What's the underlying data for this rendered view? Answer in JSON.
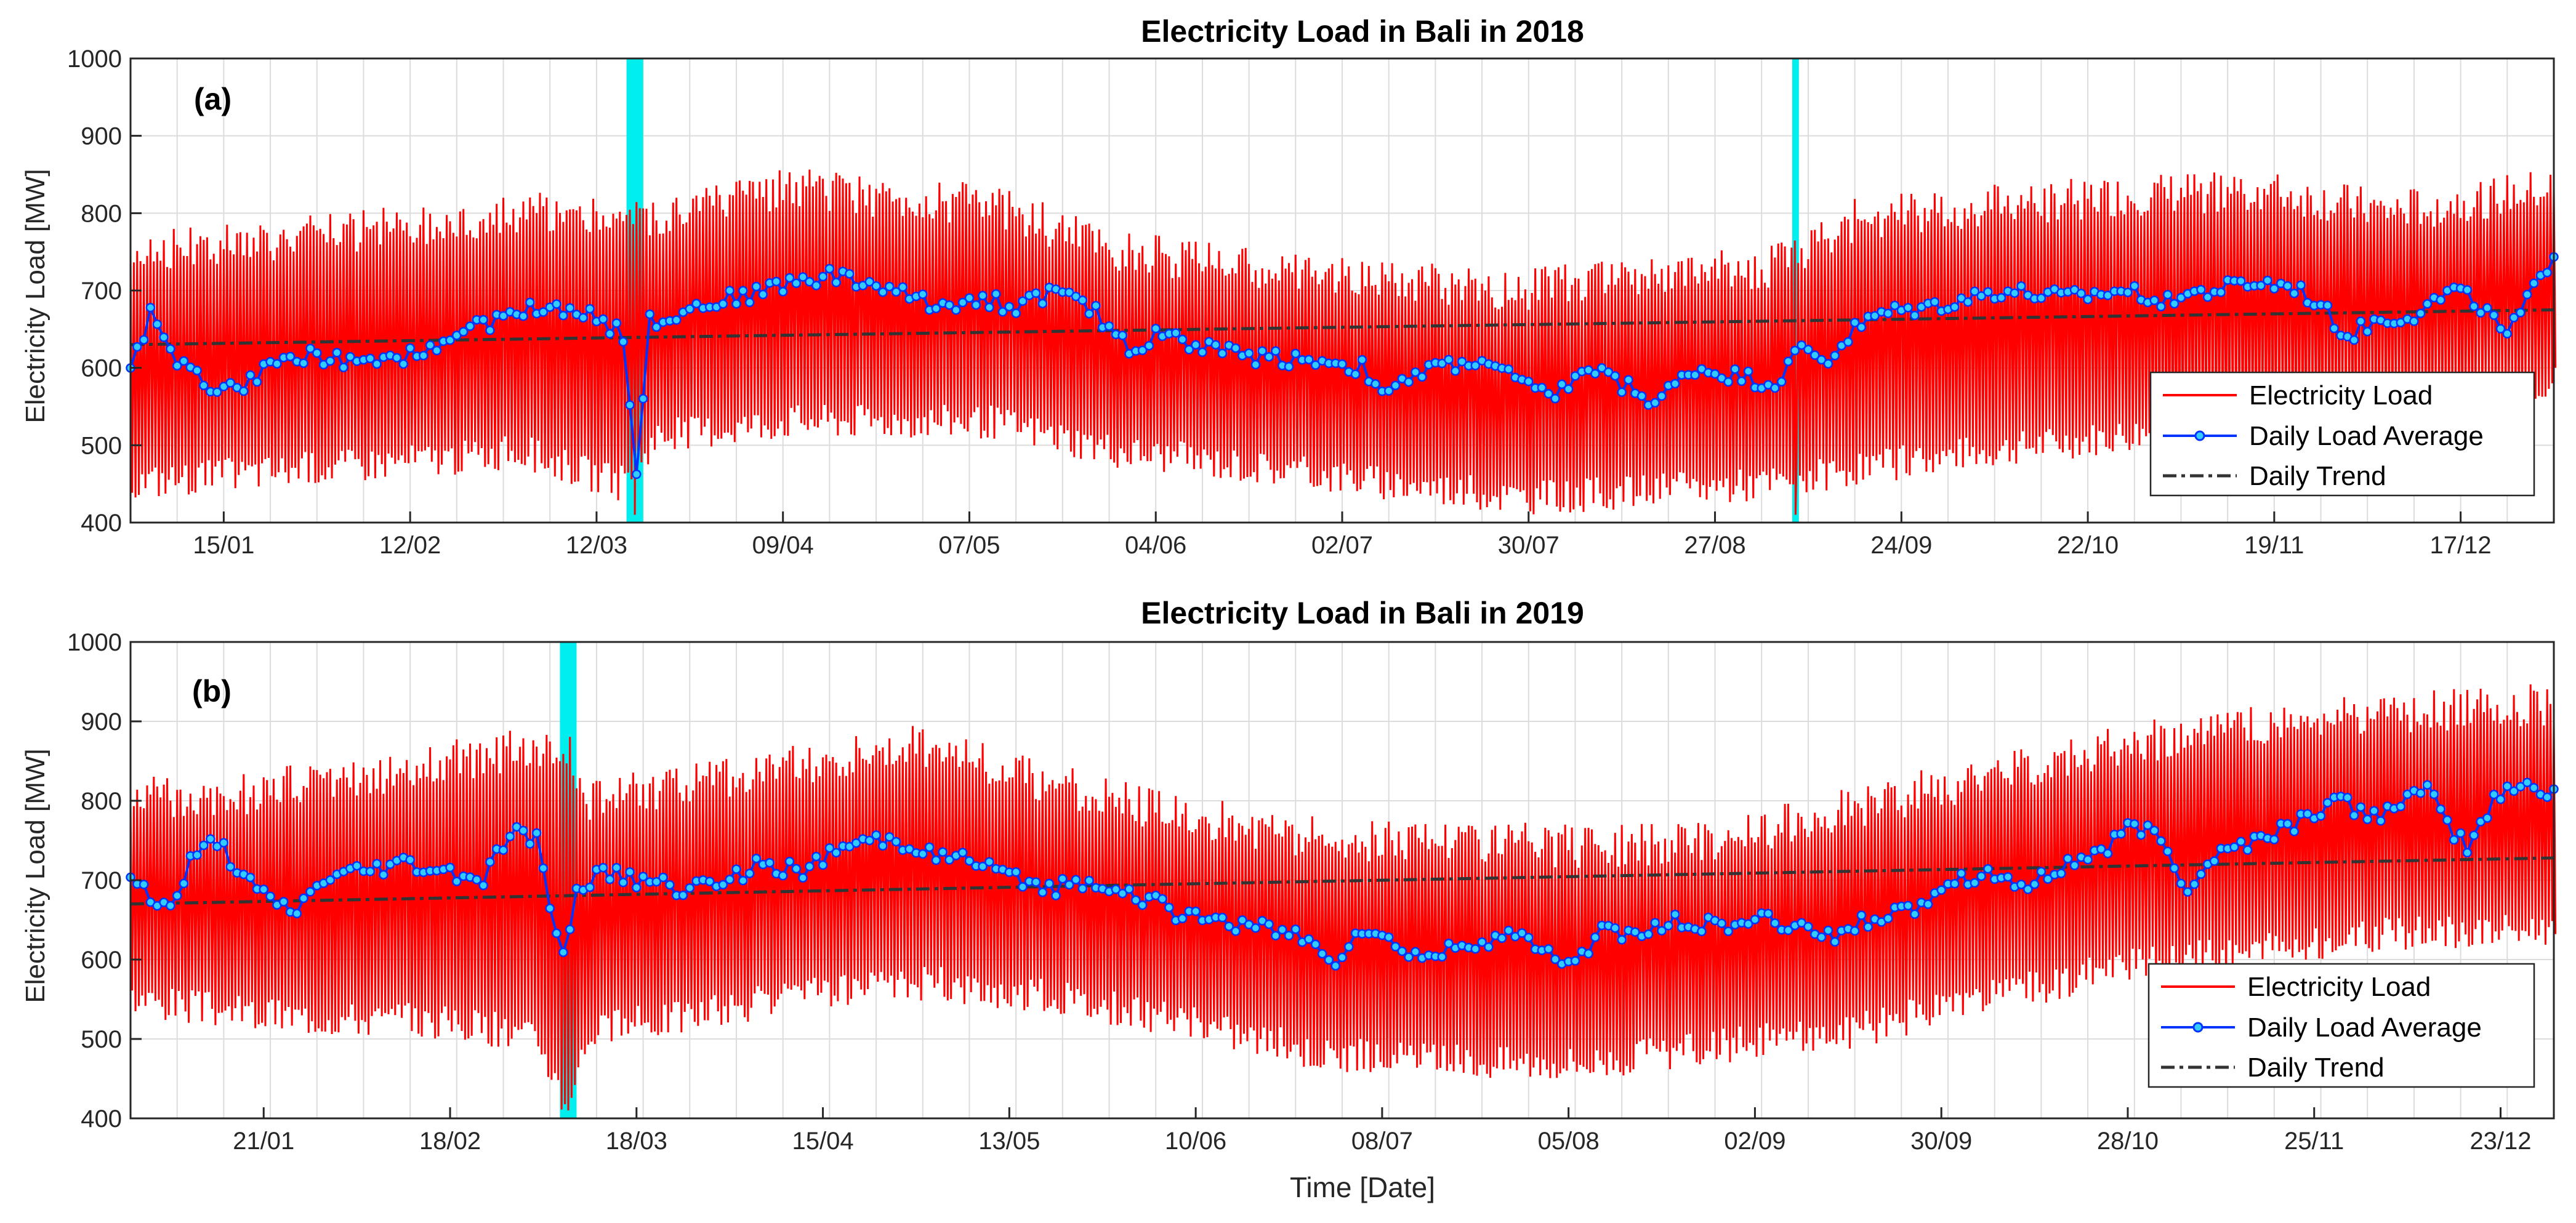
{
  "figure": {
    "xlabel": "Time [Date]",
    "ylabel": "Electricity Load [MW]"
  },
  "legend": {
    "position": "bottom-right",
    "entries": [
      "Electricity Load",
      "Daily Load Average",
      "Daily Trend"
    ]
  },
  "colors": {
    "load": "#ff0000",
    "average": "#0033ff",
    "marker_fill": "#33ccff",
    "trend": "#333333",
    "anomaly": "#00eeee",
    "grid": "#dcdcdc"
  },
  "chart_data": [
    {
      "type": "line",
      "panel": "(a)",
      "title": "Electricity Load in Bali in 2018",
      "ylabel": "Electricity Load [MW]",
      "ylim": [
        400,
        1000
      ],
      "yticks": [
        400,
        500,
        600,
        700,
        800,
        900,
        1000
      ],
      "xlim_days": [
        1,
        365
      ],
      "xticks": [
        {
          "day": 15,
          "label": "15/01"
        },
        {
          "day": 43,
          "label": "12/02"
        },
        {
          "day": 71,
          "label": "12/03"
        },
        {
          "day": 99,
          "label": "09/04"
        },
        {
          "day": 127,
          "label": "07/05"
        },
        {
          "day": 155,
          "label": "04/06"
        },
        {
          "day": 183,
          "label": "02/07"
        },
        {
          "day": 211,
          "label": "30/07"
        },
        {
          "day": 239,
          "label": "27/08"
        },
        {
          "day": 267,
          "label": "24/09"
        },
        {
          "day": 295,
          "label": "22/10"
        },
        {
          "day": 323,
          "label": "19/11"
        },
        {
          "day": 351,
          "label": "17/12"
        }
      ],
      "anomaly_days": [
        {
          "start": 75.5,
          "end": 78
        },
        {
          "start": 250.6,
          "end": 251.6
        }
      ],
      "trend": {
        "start": 630,
        "end": 675
      },
      "daily_average_anchors": [
        [
          1,
          600
        ],
        [
          4,
          670
        ],
        [
          8,
          610
        ],
        [
          12,
          580
        ],
        [
          16,
          570
        ],
        [
          22,
          600
        ],
        [
          28,
          620
        ],
        [
          36,
          600
        ],
        [
          44,
          620
        ],
        [
          50,
          640
        ],
        [
          58,
          670
        ],
        [
          64,
          680
        ],
        [
          70,
          675
        ],
        [
          75,
          640
        ],
        [
          77,
          470
        ],
        [
          79,
          660
        ],
        [
          86,
          680
        ],
        [
          94,
          695
        ],
        [
          100,
          710
        ],
        [
          106,
          720
        ],
        [
          114,
          705
        ],
        [
          122,
          680
        ],
        [
          128,
          690
        ],
        [
          134,
          680
        ],
        [
          140,
          700
        ],
        [
          146,
          670
        ],
        [
          152,
          620
        ],
        [
          156,
          650
        ],
        [
          160,
          630
        ],
        [
          170,
          615
        ],
        [
          180,
          610
        ],
        [
          186,
          600
        ],
        [
          190,
          565
        ],
        [
          196,
          600
        ],
        [
          204,
          610
        ],
        [
          210,
          580
        ],
        [
          214,
          560
        ],
        [
          220,
          600
        ],
        [
          226,
          575
        ],
        [
          230,
          555
        ],
        [
          236,
          600
        ],
        [
          242,
          590
        ],
        [
          248,
          580
        ],
        [
          252,
          625
        ],
        [
          256,
          610
        ],
        [
          260,
          650
        ],
        [
          264,
          670
        ],
        [
          272,
          680
        ],
        [
          282,
          700
        ],
        [
          292,
          690
        ],
        [
          300,
          700
        ],
        [
          306,
          690
        ],
        [
          314,
          700
        ],
        [
          320,
          710
        ],
        [
          326,
          705
        ],
        [
          330,
          680
        ],
        [
          334,
          640
        ],
        [
          338,
          660
        ],
        [
          344,
          670
        ],
        [
          350,
          700
        ],
        [
          354,
          680
        ],
        [
          358,
          640
        ],
        [
          362,
          700
        ],
        [
          365,
          750
        ]
      ],
      "load_envelope": {
        "upper_anchors": [
          [
            1,
            740
          ],
          [
            30,
            760
          ],
          [
            60,
            790
          ],
          [
            74,
            780
          ],
          [
            80,
            780
          ],
          [
            100,
            820
          ],
          [
            130,
            800
          ],
          [
            150,
            740
          ],
          [
            170,
            720
          ],
          [
            190,
            700
          ],
          [
            210,
            690
          ],
          [
            230,
            710
          ],
          [
            248,
            720
          ],
          [
            260,
            780
          ],
          [
            280,
            800
          ],
          [
            300,
            810
          ],
          [
            320,
            820
          ],
          [
            340,
            790
          ],
          [
            365,
            820
          ]
        ],
        "lower_anchors": [
          [
            1,
            460
          ],
          [
            30,
            480
          ],
          [
            60,
            500
          ],
          [
            74,
            460
          ],
          [
            80,
            520
          ],
          [
            100,
            540
          ],
          [
            130,
            540
          ],
          [
            150,
            500
          ],
          [
            170,
            480
          ],
          [
            190,
            460
          ],
          [
            210,
            440
          ],
          [
            230,
            450
          ],
          [
            248,
            460
          ],
          [
            260,
            480
          ],
          [
            280,
            500
          ],
          [
            300,
            520
          ],
          [
            320,
            540
          ],
          [
            340,
            560
          ],
          [
            365,
            590
          ]
        ]
      }
    },
    {
      "type": "line",
      "panel": "(b)",
      "title": "Electricity Load in Bali in 2019",
      "ylabel": "Electricity Load [MW]",
      "ylim": [
        400,
        1000
      ],
      "yticks": [
        400,
        500,
        600,
        700,
        800,
        900,
        1000
      ],
      "xlim_days": [
        1,
        365
      ],
      "xticks": [
        {
          "day": 21,
          "label": "21/01"
        },
        {
          "day": 49,
          "label": "18/02"
        },
        {
          "day": 77,
          "label": "18/03"
        },
        {
          "day": 105,
          "label": "15/04"
        },
        {
          "day": 133,
          "label": "13/05"
        },
        {
          "day": 161,
          "label": "10/06"
        },
        {
          "day": 189,
          "label": "08/07"
        },
        {
          "day": 217,
          "label": "05/08"
        },
        {
          "day": 245,
          "label": "02/09"
        },
        {
          "day": 273,
          "label": "30/09"
        },
        {
          "day": 301,
          "label": "28/10"
        },
        {
          "day": 329,
          "label": "25/11"
        },
        {
          "day": 357,
          "label": "23/12"
        }
      ],
      "anomaly_days": [
        {
          "start": 65.5,
          "end": 68
        }
      ],
      "trend": {
        "start": 670,
        "end": 728
      },
      "daily_average_anchors": [
        [
          1,
          705
        ],
        [
          4,
          680
        ],
        [
          7,
          660
        ],
        [
          10,
          720
        ],
        [
          14,
          750
        ],
        [
          18,
          700
        ],
        [
          22,
          670
        ],
        [
          26,
          660
        ],
        [
          30,
          700
        ],
        [
          36,
          710
        ],
        [
          42,
          720
        ],
        [
          48,
          710
        ],
        [
          54,
          700
        ],
        [
          58,
          760
        ],
        [
          62,
          750
        ],
        [
          66,
          600
        ],
        [
          68,
          690
        ],
        [
          72,
          710
        ],
        [
          78,
          700
        ],
        [
          84,
          690
        ],
        [
          90,
          700
        ],
        [
          96,
          720
        ],
        [
          102,
          710
        ],
        [
          108,
          740
        ],
        [
          114,
          750
        ],
        [
          120,
          740
        ],
        [
          128,
          720
        ],
        [
          134,
          700
        ],
        [
          140,
          690
        ],
        [
          146,
          700
        ],
        [
          152,
          680
        ],
        [
          158,
          660
        ],
        [
          164,
          650
        ],
        [
          170,
          640
        ],
        [
          176,
          630
        ],
        [
          182,
          600
        ],
        [
          186,
          640
        ],
        [
          190,
          620
        ],
        [
          196,
          600
        ],
        [
          202,
          620
        ],
        [
          208,
          630
        ],
        [
          214,
          610
        ],
        [
          218,
          590
        ],
        [
          222,
          640
        ],
        [
          228,
          630
        ],
        [
          234,
          650
        ],
        [
          240,
          640
        ],
        [
          246,
          650
        ],
        [
          252,
          640
        ],
        [
          258,
          630
        ],
        [
          262,
          650
        ],
        [
          268,
          660
        ],
        [
          274,
          700
        ],
        [
          280,
          710
        ],
        [
          286,
          690
        ],
        [
          292,
          720
        ],
        [
          298,
          740
        ],
        [
          302,
          770
        ],
        [
          306,
          750
        ],
        [
          310,
          690
        ],
        [
          314,
          730
        ],
        [
          320,
          750
        ],
        [
          326,
          770
        ],
        [
          332,
          800
        ],
        [
          338,
          780
        ],
        [
          342,
          800
        ],
        [
          346,
          810
        ],
        [
          350,
          760
        ],
        [
          352,
          740
        ],
        [
          356,
          800
        ],
        [
          360,
          820
        ],
        [
          365,
          810
        ]
      ],
      "load_envelope": {
        "upper_anchors": [
          [
            1,
            790
          ],
          [
            20,
            800
          ],
          [
            50,
            840
          ],
          [
            62,
            860
          ],
          [
            66,
            860
          ],
          [
            70,
            790
          ],
          [
            100,
            830
          ],
          [
            120,
            860
          ],
          [
            140,
            810
          ],
          [
            160,
            770
          ],
          [
            180,
            740
          ],
          [
            200,
            740
          ],
          [
            220,
            730
          ],
          [
            240,
            740
          ],
          [
            260,
            780
          ],
          [
            280,
            820
          ],
          [
            300,
            860
          ],
          [
            320,
            880
          ],
          [
            340,
            900
          ],
          [
            365,
            910
          ]
        ],
        "lower_anchors": [
          [
            1,
            560
          ],
          [
            20,
            540
          ],
          [
            50,
            530
          ],
          [
            62,
            510
          ],
          [
            66,
            430
          ],
          [
            70,
            520
          ],
          [
            100,
            560
          ],
          [
            120,
            580
          ],
          [
            140,
            560
          ],
          [
            160,
            530
          ],
          [
            180,
            490
          ],
          [
            200,
            480
          ],
          [
            220,
            480
          ],
          [
            240,
            500
          ],
          [
            260,
            520
          ],
          [
            280,
            560
          ],
          [
            300,
            600
          ],
          [
            320,
            620
          ],
          [
            340,
            640
          ],
          [
            365,
            650
          ]
        ]
      }
    }
  ]
}
